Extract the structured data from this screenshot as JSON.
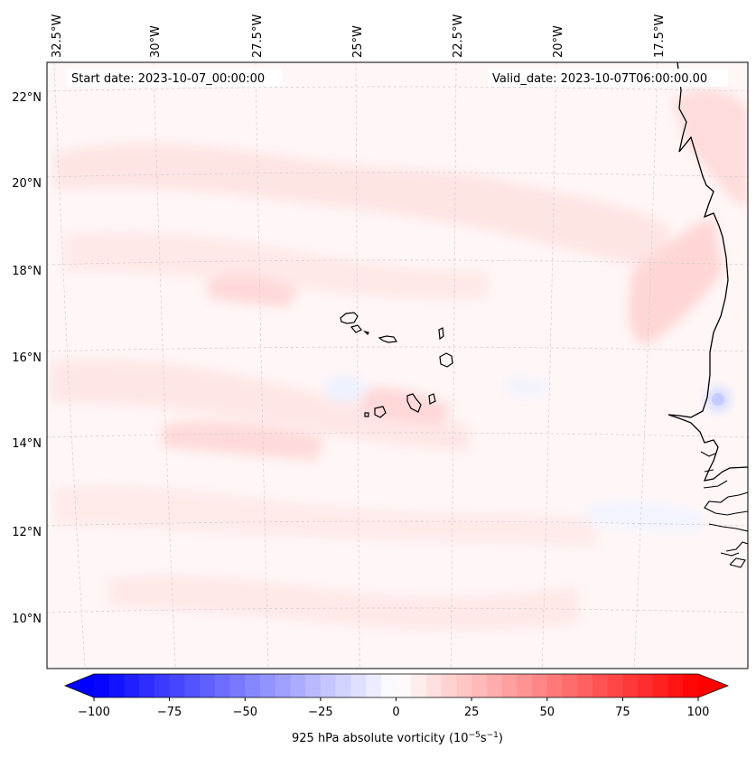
{
  "map": {
    "start_date": "Start date: 2023-10-07_00:00:00",
    "valid_date": "Valid_date: 2023-10-07T06:00:00.00",
    "lon_labels": [
      "32.5°W",
      "30°W",
      "27.5°W",
      "25°W",
      "22.5°W",
      "20°W",
      "17.5°W"
    ],
    "lat_labels": [
      "22°N",
      "20°N",
      "18°N",
      "16°N",
      "14°N",
      "12°N",
      "10°N"
    ],
    "colorbar": {
      "ticks": [
        "−100",
        "−75",
        "−50",
        "−25",
        "0",
        "25",
        "50",
        "75",
        "100"
      ],
      "label_main": "925 hPa absolute vorticity (10",
      "label_exp1": "−5",
      "label_mid": "s",
      "label_exp2": "−1",
      "label_end": ")",
      "min": -100,
      "max": 100,
      "step": 5,
      "cmap": "bwr"
    },
    "colors": {
      "coast": "#000000",
      "grid": "#cccccc",
      "field_base": "#fff6f6",
      "positive": "#ffe2e2",
      "negative": "#eef2ff"
    }
  }
}
